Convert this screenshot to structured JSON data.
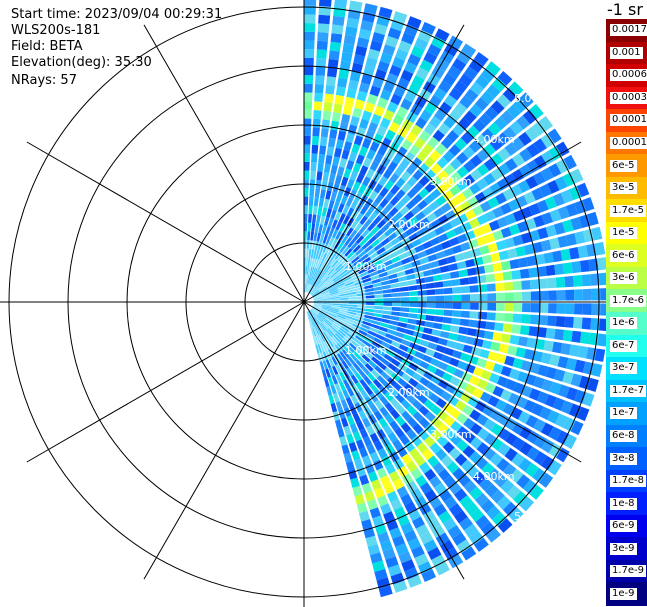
{
  "info": {
    "start_time": "Start time: 2023/09/04 00:29:31",
    "instrument": "WLS200s-181",
    "field": "Field: BETA",
    "elevation": "Elevation(deg): 35.30",
    "nrays": "NRays: 57"
  },
  "colorbar": {
    "title": "-1 sr",
    "labels": [
      "0.0017",
      "0.001",
      "0.0006",
      "0.0003",
      "0.00017",
      "0.0001",
      "6e-5",
      "3e-5",
      "1.7e-5",
      "1e-5",
      "6e-6",
      "3e-6",
      "1.7e-6",
      "1e-6",
      "6e-7",
      "3e-7",
      "1.7e-7",
      "1e-7",
      "6e-8",
      "3e-8",
      "1.7e-8",
      "1e-8",
      "6e-9",
      "3e-9",
      "1.7e-9",
      "1e-9"
    ],
    "colors": [
      "#8b0000",
      "#b00000",
      "#d00000",
      "#f01010",
      "#ff4400",
      "#ff7700",
      "#ff9900",
      "#ffbb00",
      "#ffdd00",
      "#ffff00",
      "#ddff22",
      "#bbff44",
      "#88ff88",
      "#55ffcc",
      "#22ffee",
      "#00e0ff",
      "#00c0ff",
      "#00a0ff",
      "#0080ff",
      "#0060ff",
      "#0040ff",
      "#0020ff",
      "#0000ee",
      "#0000cc",
      "#0000aa",
      "#000080"
    ]
  },
  "range_rings_upper": [
    "1.00km",
    "2.00km",
    "3.00km",
    "4.00km",
    "5.00km"
  ],
  "range_rings_lower": [
    "1.00km",
    "2.00km",
    "3.00km",
    "4.00km",
    "5.00km"
  ]
}
